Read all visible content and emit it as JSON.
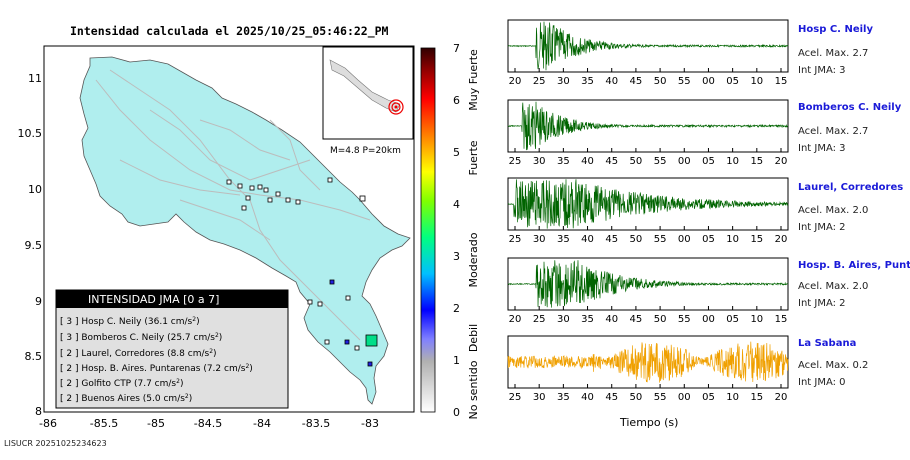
{
  "title": "Intensidad calculada el 2025/10/25_05:46:22_PM",
  "footer_id": "LISUCR 20251025234623",
  "map": {
    "x_ticks": [
      "-86",
      "-85.5",
      "-85",
      "-84.5",
      "-84",
      "-83.5",
      "-83"
    ],
    "y_ticks": [
      "11",
      "10.5",
      "10",
      "9.5",
      "9",
      "8.5",
      "8"
    ],
    "inset_label": "M=4.8 P=20km"
  },
  "legend": {
    "title": "INTENSIDAD JMA [0 a 7]",
    "items": [
      {
        "level": "[ 3 ]",
        "name": "Hosp C. Neily",
        "value": "(36.1 cm/s",
        "sup": "2",
        ")": ")"
      },
      {
        "level": "[ 3 ]",
        "name": "Bomberos C. Neily",
        "value": "(25.7 cm/s",
        "sup": "2",
        ")": ")"
      },
      {
        "level": "[ 2 ]",
        "name": "Laurel, Corredores",
        "value": "(8.8 cm/s",
        "sup": "2",
        ")": ")"
      },
      {
        "level": "[ 2 ]",
        "name": "Hosp. B. Aires. Puntarenas",
        "value": "(7.2 cm/s",
        "sup": "2",
        ")": ")"
      },
      {
        "level": "[ 2 ]",
        "name": "Golfito CTP",
        "value": "(7.7 cm/s",
        "sup": "2",
        ")": ")"
      },
      {
        "level": "[ 2 ]",
        "name": "Buenos Aires",
        "value": "(5.0 cm/s",
        "sup": "2",
        ")": ")"
      }
    ]
  },
  "colorbar": {
    "ticks": [
      "7",
      "6",
      "5",
      "4",
      "3",
      "2",
      "1",
      "0"
    ],
    "labels": [
      "Muy Fuerte",
      "Fuerte",
      "Moderado",
      "Debil",
      "No sentido"
    ]
  },
  "stations": [
    {
      "name": "Hosp C. Neily",
      "acel": "Acel. Max. 2.7",
      "jma": "Int JMA: 3",
      "color": "#006400",
      "ticks": [
        "20",
        "25",
        "30",
        "35",
        "40",
        "45",
        "50",
        "55",
        "00",
        "05",
        "10",
        "15"
      ]
    },
    {
      "name": "Bomberos C. Neily",
      "acel": "Acel. Max. 2.7",
      "jma": "Int JMA: 3",
      "color": "#006400",
      "ticks": [
        "25",
        "30",
        "35",
        "40",
        "45",
        "50",
        "55",
        "00",
        "05",
        "10",
        "15",
        "20"
      ]
    },
    {
      "name": "Laurel, Corredores",
      "acel": "Acel. Max. 2.0",
      "jma": "Int JMA: 2",
      "color": "#006400",
      "ticks": [
        "25",
        "30",
        "35",
        "40",
        "45",
        "50",
        "55",
        "00",
        "05",
        "10",
        "15",
        "20"
      ]
    },
    {
      "name": "Hosp. B. Aires, Puntare",
      "acel": "Acel. Max. 2.0",
      "jma": "Int JMA: 2",
      "color": "#006400",
      "ticks": [
        "20",
        "25",
        "30",
        "35",
        "40",
        "45",
        "50",
        "55",
        "00",
        "05",
        "10",
        "15"
      ]
    },
    {
      "name": "La Sabana",
      "acel": "Acel. Max. 0.2",
      "jma": "Int JMA: 0",
      "color": "#f0a000",
      "ticks": [
        "25",
        "30",
        "35",
        "40",
        "45",
        "50",
        "55",
        "00",
        "05",
        "10",
        "15",
        "20"
      ]
    }
  ],
  "time_axis_label": "Tiempo (s)"
}
